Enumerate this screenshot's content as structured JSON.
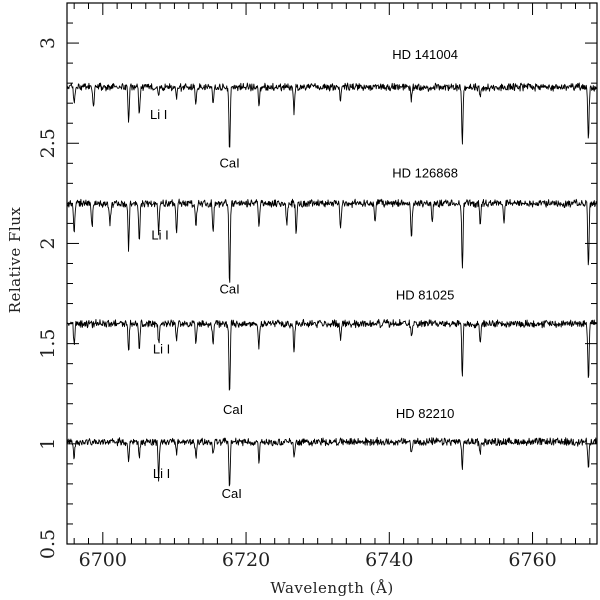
{
  "chart_data": {
    "type": "line",
    "xlabel": "Wavelength (Å)",
    "ylabel": "Relative Flux",
    "xlim": [
      6695,
      6769
    ],
    "ylim": [
      0.5,
      3.2
    ],
    "x_ticks": [
      6700,
      6720,
      6740,
      6760
    ],
    "y_ticks": [
      0.5,
      1,
      1.5,
      2,
      2.5,
      3
    ],
    "y_tick_labels": [
      "0.5",
      "1",
      "1.5",
      "2",
      "2.5",
      "3"
    ],
    "grid": false,
    "series": [
      {
        "name": "HD 141004",
        "continuum": 2.78,
        "label_pos": [
          6745,
          2.92
        ],
        "line_labels": [
          {
            "text": "Li I",
            "x": 6707.8,
            "y": 2.62
          },
          {
            "text": "CaI",
            "x": 6717.7,
            "y": 2.38
          }
        ],
        "absorption_lines": [
          {
            "x": 6696.0,
            "depth": 0.08
          },
          {
            "x": 6698.7,
            "depth": 0.1
          },
          {
            "x": 6703.6,
            "depth": 0.16
          },
          {
            "x": 6705.1,
            "depth": 0.14
          },
          {
            "x": 6707.8,
            "depth": 0.04
          },
          {
            "x": 6710.3,
            "depth": 0.06
          },
          {
            "x": 6713.0,
            "depth": 0.08
          },
          {
            "x": 6715.4,
            "depth": 0.08
          },
          {
            "x": 6717.7,
            "depth": 0.32
          },
          {
            "x": 6721.8,
            "depth": 0.08
          },
          {
            "x": 6726.7,
            "depth": 0.12
          },
          {
            "x": 6733.2,
            "depth": 0.06
          },
          {
            "x": 6743.1,
            "depth": 0.06
          },
          {
            "x": 6750.2,
            "depth": 0.28
          },
          {
            "x": 6752.7,
            "depth": 0.06
          },
          {
            "x": 6767.8,
            "depth": 0.26
          }
        ]
      },
      {
        "name": "HD 126868",
        "continuum": 2.2,
        "label_pos": [
          6745,
          2.33
        ],
        "line_labels": [
          {
            "text": "Li I",
            "x": 6708.0,
            "y": 2.02
          },
          {
            "text": "CaI",
            "x": 6717.7,
            "y": 1.75
          }
        ],
        "absorption_lines": [
          {
            "x": 6696.0,
            "depth": 0.16
          },
          {
            "x": 6698.5,
            "depth": 0.12
          },
          {
            "x": 6701.0,
            "depth": 0.1
          },
          {
            "x": 6703.6,
            "depth": 0.22
          },
          {
            "x": 6705.1,
            "depth": 0.2
          },
          {
            "x": 6707.8,
            "depth": 0.14
          },
          {
            "x": 6710.3,
            "depth": 0.14
          },
          {
            "x": 6713.0,
            "depth": 0.12
          },
          {
            "x": 6715.4,
            "depth": 0.16
          },
          {
            "x": 6717.7,
            "depth": 0.42
          },
          {
            "x": 6721.8,
            "depth": 0.12
          },
          {
            "x": 6725.7,
            "depth": 0.12
          },
          {
            "x": 6727.0,
            "depth": 0.14
          },
          {
            "x": 6733.2,
            "depth": 0.12
          },
          {
            "x": 6738.0,
            "depth": 0.1
          },
          {
            "x": 6743.1,
            "depth": 0.18
          },
          {
            "x": 6746.0,
            "depth": 0.08
          },
          {
            "x": 6750.2,
            "depth": 0.32
          },
          {
            "x": 6752.7,
            "depth": 0.12
          },
          {
            "x": 6756.0,
            "depth": 0.1
          },
          {
            "x": 6767.8,
            "depth": 0.32
          }
        ]
      },
      {
        "name": "HD 81025",
        "continuum": 1.6,
        "label_pos": [
          6745,
          1.72
        ],
        "line_labels": [
          {
            "text": "Li I",
            "x": 6708.2,
            "y": 1.45
          },
          {
            "text": "CaI",
            "x": 6718.2,
            "y": 1.15
          }
        ],
        "absorption_lines": [
          {
            "x": 6696.0,
            "depth": 0.1
          },
          {
            "x": 6703.6,
            "depth": 0.14
          },
          {
            "x": 6705.1,
            "depth": 0.14
          },
          {
            "x": 6707.8,
            "depth": 0.1
          },
          {
            "x": 6710.3,
            "depth": 0.08
          },
          {
            "x": 6713.0,
            "depth": 0.1
          },
          {
            "x": 6715.4,
            "depth": 0.12
          },
          {
            "x": 6717.7,
            "depth": 0.36
          },
          {
            "x": 6721.8,
            "depth": 0.12
          },
          {
            "x": 6726.7,
            "depth": 0.14
          },
          {
            "x": 6733.2,
            "depth": 0.08
          },
          {
            "x": 6743.1,
            "depth": 0.08
          },
          {
            "x": 6750.2,
            "depth": 0.26
          },
          {
            "x": 6752.7,
            "depth": 0.08
          },
          {
            "x": 6767.8,
            "depth": 0.28
          }
        ]
      },
      {
        "name": "HD 82210",
        "continuum": 1.01,
        "label_pos": [
          6745,
          1.13
        ],
        "line_labels": [
          {
            "text": "Li I",
            "x": 6708.2,
            "y": 0.83
          },
          {
            "text": "CaI",
            "x": 6718.0,
            "y": 0.73
          }
        ],
        "absorption_lines": [
          {
            "x": 6696.0,
            "depth": 0.08
          },
          {
            "x": 6703.6,
            "depth": 0.1
          },
          {
            "x": 6705.1,
            "depth": 0.08
          },
          {
            "x": 6707.8,
            "depth": 0.18
          },
          {
            "x": 6710.3,
            "depth": 0.06
          },
          {
            "x": 6713.0,
            "depth": 0.08
          },
          {
            "x": 6715.4,
            "depth": 0.06
          },
          {
            "x": 6717.7,
            "depth": 0.24
          },
          {
            "x": 6721.8,
            "depth": 0.1
          },
          {
            "x": 6726.7,
            "depth": 0.08
          },
          {
            "x": 6743.1,
            "depth": 0.06
          },
          {
            "x": 6750.2,
            "depth": 0.14
          },
          {
            "x": 6752.7,
            "depth": 0.06
          },
          {
            "x": 6767.8,
            "depth": 0.14
          }
        ]
      }
    ]
  }
}
